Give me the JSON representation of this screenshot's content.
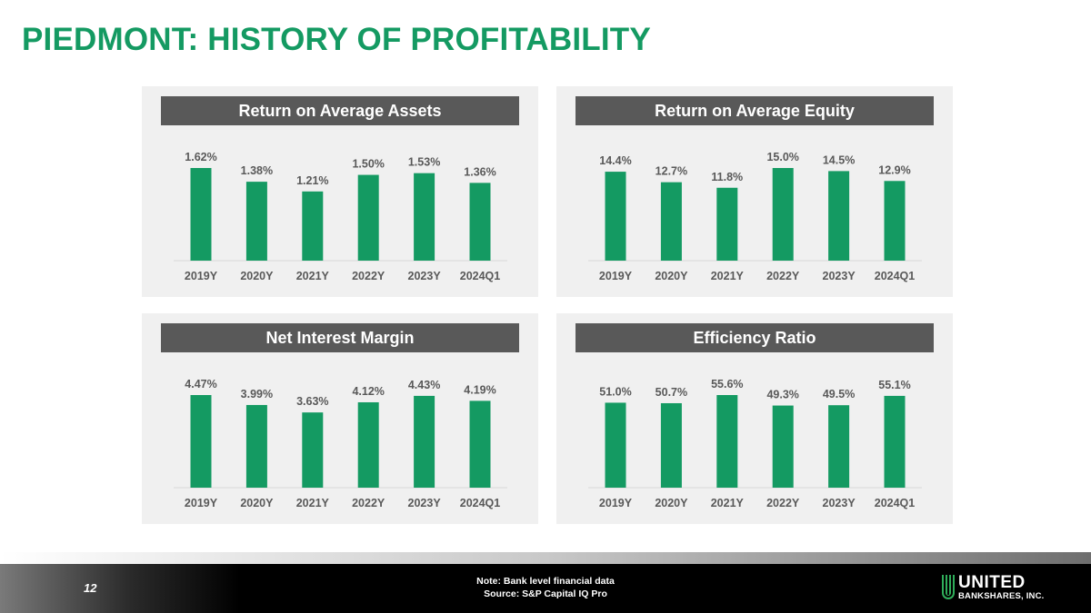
{
  "slide": {
    "title": "PIEDMONT: HISTORY OF PROFITABILITY",
    "page_number": "12",
    "note": "Note: Bank level financial data",
    "source": "Source: S&P Capital IQ Pro",
    "logo_name": "UNITED",
    "logo_subtitle": "BANKSHARES, INC."
  },
  "colors": {
    "title": "#149a62",
    "bar": "#149a62",
    "header_bg": "#595959",
    "panel_bg": "#f0f0f0",
    "label_text": "#595959"
  },
  "chart_data": [
    {
      "type": "bar",
      "title": "Return on Average Assets",
      "categories": [
        "2019Y",
        "2020Y",
        "2021Y",
        "2022Y",
        "2023Y",
        "2024Q1"
      ],
      "values": [
        1.62,
        1.38,
        1.21,
        1.5,
        1.53,
        1.36
      ],
      "value_labels": [
        "1.62%",
        "1.38%",
        "1.21%",
        "1.50%",
        "1.53%",
        "1.36%"
      ],
      "unit": "%",
      "ylim": [
        0,
        1.62
      ]
    },
    {
      "type": "bar",
      "title": "Return on Average Equity",
      "categories": [
        "2019Y",
        "2020Y",
        "2021Y",
        "2022Y",
        "2023Y",
        "2024Q1"
      ],
      "values": [
        14.4,
        12.7,
        11.8,
        15.0,
        14.5,
        12.9
      ],
      "value_labels": [
        "14.4%",
        "12.7%",
        "11.8%",
        "15.0%",
        "14.5%",
        "12.9%"
      ],
      "unit": "%",
      "ylim": [
        0,
        15.0
      ]
    },
    {
      "type": "bar",
      "title": "Net Interest Margin",
      "categories": [
        "2019Y",
        "2020Y",
        "2021Y",
        "2022Y",
        "2023Y",
        "2024Q1"
      ],
      "values": [
        4.47,
        3.99,
        3.63,
        4.12,
        4.43,
        4.19
      ],
      "value_labels": [
        "4.47%",
        "3.99%",
        "3.63%",
        "4.12%",
        "4.43%",
        "4.19%"
      ],
      "unit": "%",
      "ylim": [
        0,
        4.47
      ]
    },
    {
      "type": "bar",
      "title": "Efficiency Ratio",
      "categories": [
        "2019Y",
        "2020Y",
        "2021Y",
        "2022Y",
        "2023Y",
        "2024Q1"
      ],
      "values": [
        51.0,
        50.7,
        55.6,
        49.3,
        49.5,
        55.1
      ],
      "value_labels": [
        "51.0%",
        "50.7%",
        "55.6%",
        "49.3%",
        "49.5%",
        "55.1%"
      ],
      "unit": "%",
      "ylim": [
        0,
        55.6
      ]
    }
  ]
}
